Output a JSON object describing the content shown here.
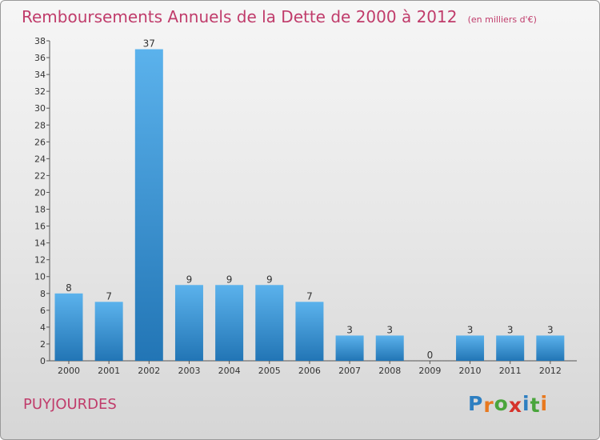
{
  "title": "Remboursements Annuels de la Dette de 2000 à 2012",
  "subtitle": "(en milliers d'€)",
  "place": "PUYJOURDES",
  "logo": {
    "text": "Proxiti",
    "letters": [
      "P",
      "r",
      "o",
      "x",
      "i",
      "t",
      "i"
    ],
    "colors": [
      "#2e7fc1",
      "#e8791f",
      "#4aa53c",
      "#d6322b",
      "#2e7fc1",
      "#4aa53c",
      "#e8791f"
    ]
  },
  "colors": {
    "title": "#c03c6b",
    "bar_light": "#5bb2ec",
    "bar_dark": "#2275b5",
    "axis": "#555555",
    "label": "#333333"
  },
  "chart_data": {
    "type": "bar",
    "categories": [
      "2000",
      "2001",
      "2002",
      "2003",
      "2004",
      "2005",
      "2006",
      "2007",
      "2008",
      "2009",
      "2010",
      "2011",
      "2012"
    ],
    "values": [
      8,
      7,
      37,
      9,
      9,
      9,
      7,
      3,
      3,
      0,
      3,
      3,
      3
    ],
    "data_labels": [
      "8",
      "7",
      "37",
      "9",
      "9",
      "9",
      "7",
      "3",
      "3",
      "0",
      "3",
      "3",
      "3"
    ],
    "title": "Remboursements Annuels de la Dette de 2000 à 2012",
    "subtitle": "(en milliers d'€)",
    "xlabel": "",
    "ylabel": "",
    "ylim": [
      0,
      38
    ],
    "yticks": [
      0,
      2,
      4,
      6,
      8,
      10,
      12,
      14,
      16,
      18,
      20,
      22,
      24,
      26,
      28,
      30,
      32,
      34,
      36,
      38
    ],
    "grid": false,
    "legend": "none"
  }
}
